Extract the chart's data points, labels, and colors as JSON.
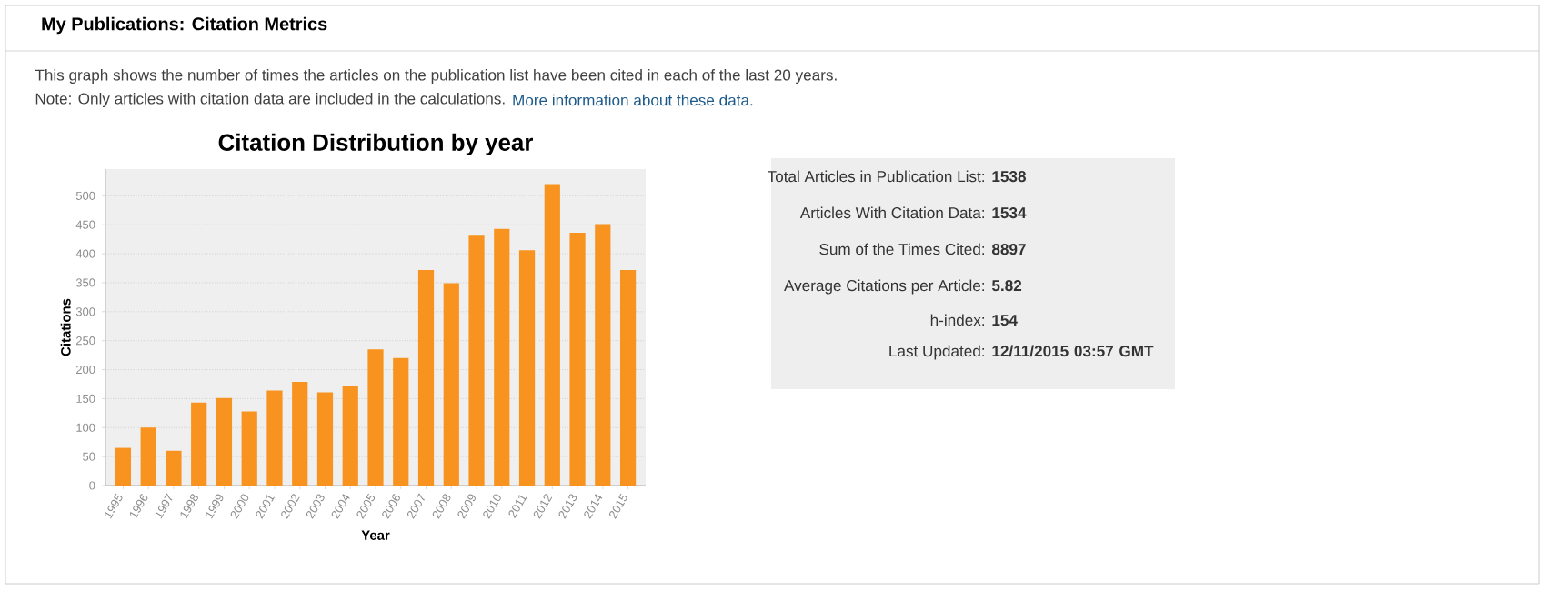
{
  "chart_data": [
    {
      "type": "other",
      "title": "My Publications: Citation Metrics",
      "annotations": [
        "This graph shows the number of times the articles on the publication list have been cited in each of the last 20 years.",
        "Note: Only articles with citation data are included in the calculations.",
        "More information about these data."
      ]
    },
    {
      "type": "bar",
      "title": "Citation Distribution by year",
      "xlabel": "Year",
      "ylabel": "Citations",
      "categories": [
        "1995",
        "1996",
        "1997",
        "1998",
        "1999",
        "2000",
        "2001",
        "2002",
        "2003",
        "2004",
        "2005",
        "2006",
        "2007",
        "2008",
        "2009",
        "2010",
        "2011",
        "2012",
        "2013",
        "2014",
        "2015"
      ],
      "values": [
        65,
        100,
        60,
        143,
        151,
        128,
        164,
        179,
        161,
        172,
        235,
        220,
        372,
        349,
        431,
        443,
        406,
        520,
        436,
        451,
        372
      ],
      "color": "#f7931e",
      "ylim": [
        0,
        546
      ],
      "yticks": [
        0,
        50,
        100,
        150,
        200,
        250,
        300,
        350,
        400,
        450,
        500
      ],
      "grid": "y"
    },
    {
      "type": "other",
      "annotations": [
        "Total Articles in Publication List:",
        "1538",
        "Articles With Citation Data:",
        "1534",
        "Sum of the Times Cited:",
        "8897",
        "Average Citations per Article:",
        "5.82",
        "h-index:",
        "154",
        "Last Updated:",
        "12/11/2015 03:57 GMT"
      ]
    }
  ]
}
